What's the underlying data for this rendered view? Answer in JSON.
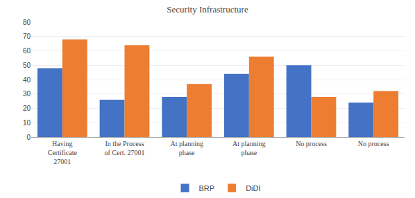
{
  "chart_data": {
    "type": "bar",
    "title": "Security Infrastructure",
    "categories": [
      "Having\nCertificate\n27001",
      "In the Process\nof Cert. 27001",
      "At planning\nphase",
      "At planning\nphase",
      "No process",
      "No process"
    ],
    "series": [
      {
        "name": "BRP",
        "color": "#4472C4",
        "values": [
          48,
          26,
          28,
          44,
          50,
          24
        ]
      },
      {
        "name": "DiDI",
        "color": "#ED7D31",
        "values": [
          68,
          64,
          37,
          56,
          28,
          32
        ]
      }
    ],
    "ylim": [
      0,
      80
    ],
    "yticks": [
      0,
      10,
      20,
      30,
      40,
      50,
      60,
      70,
      80
    ],
    "grid": true,
    "legend": "bottom"
  }
}
